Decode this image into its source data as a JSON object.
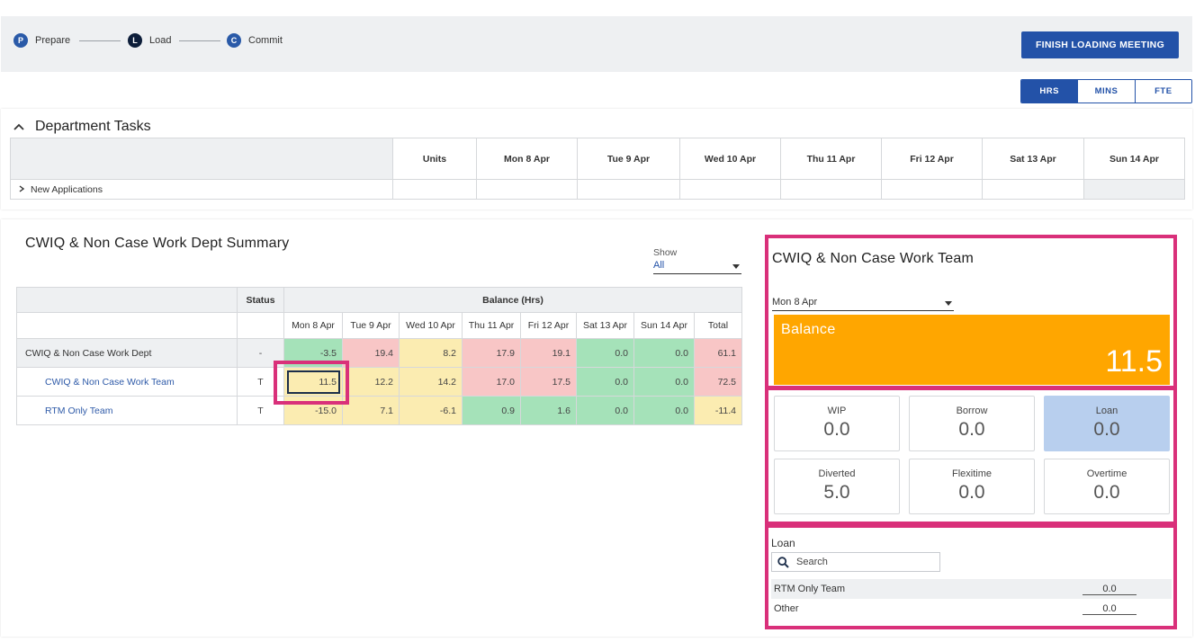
{
  "stepper": [
    {
      "letter": "P",
      "label": "Prepare"
    },
    {
      "letter": "L",
      "label": "Load"
    },
    {
      "letter": "C",
      "label": "Commit"
    }
  ],
  "finish_button": "FINISH LOADING MEETING",
  "units_toggle": {
    "options": [
      "HRS",
      "MINS",
      "FTE"
    ],
    "selected": "HRS"
  },
  "dept_tasks": {
    "title": "Department Tasks",
    "columns": [
      "Units",
      "Mon 8 Apr",
      "Tue 9 Apr",
      "Wed 10 Apr",
      "Thu 11 Apr",
      "Fri 12 Apr",
      "Sat 13 Apr",
      "Sun 14 Apr"
    ],
    "rows": [
      {
        "label": "New Applications"
      }
    ]
  },
  "summary": {
    "title": "CWIQ & Non Case Work Dept Summary",
    "show_label": "Show",
    "show_value": "All",
    "header_status": "Status",
    "header_balance": "Balance (Hrs)",
    "columns": [
      "Mon 8 Apr",
      "Tue 9 Apr",
      "Wed 10 Apr",
      "Thu 11 Apr",
      "Fri 12 Apr",
      "Sat 13 Apr",
      "Sun 14 Apr",
      "Total"
    ],
    "rows": [
      {
        "name": "CWIQ & Non Case Work Dept",
        "status": "-",
        "values": [
          "-3.5",
          "19.4",
          "8.2",
          "17.9",
          "19.1",
          "0.0",
          "0.0",
          "61.1"
        ],
        "colors": [
          "g",
          "r",
          "y",
          "r",
          "r",
          "g",
          "g",
          "r"
        ]
      },
      {
        "name": "CWIQ & Non Case Work Team",
        "status": "T",
        "values": [
          "11.5",
          "12.2",
          "14.2",
          "17.0",
          "17.5",
          "0.0",
          "0.0",
          "72.5"
        ],
        "colors": [
          "y",
          "y",
          "y",
          "r",
          "r",
          "g",
          "g",
          "r"
        ]
      },
      {
        "name": "RTM Only Team",
        "status": "T",
        "values": [
          "-15.0",
          "7.1",
          "-6.1",
          "0.9",
          "1.6",
          "0.0",
          "0.0",
          "-11.4"
        ],
        "colors": [
          "y",
          "y",
          "y",
          "g",
          "g",
          "g",
          "g",
          "y"
        ]
      }
    ]
  },
  "team_panel": {
    "title": "CWIQ & Non Case Work Team",
    "date": "Mon 8 Apr",
    "balance_label": "Balance",
    "balance_value": "11.5",
    "stats": [
      {
        "label": "WIP",
        "value": "0.0"
      },
      {
        "label": "Borrow",
        "value": "0.0"
      },
      {
        "label": "Loan",
        "value": "0.0"
      },
      {
        "label": "Diverted",
        "value": "5.0"
      },
      {
        "label": "Flexitime",
        "value": "0.0"
      },
      {
        "label": "Overtime",
        "value": "0.0"
      }
    ],
    "loan_title": "Loan",
    "search_placeholder": "Search",
    "loan_rows": [
      {
        "label": "RTM Only Team",
        "value": "0.0"
      },
      {
        "label": "Other",
        "value": "0.0"
      }
    ]
  },
  "colors": {
    "accent": "#2352a8",
    "balance": "#ffa600",
    "highlight": "#d9307a",
    "green_cell": "#a5e2b9",
    "red_cell": "#f8c6c6",
    "yellow_cell": "#fbecb1"
  }
}
